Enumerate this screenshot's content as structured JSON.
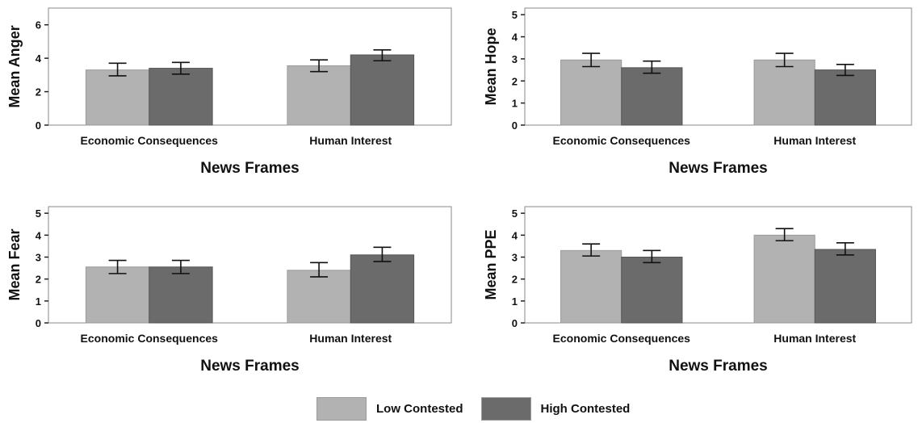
{
  "chart_data": [
    {
      "type": "bar",
      "ylabel": "Mean Anger",
      "xlabel": "News Frames",
      "categories": [
        "Economic Consequences",
        "Human Interest"
      ],
      "ylim": [
        0,
        7
      ],
      "yticks": [
        0,
        2,
        4,
        6
      ],
      "series": [
        {
          "name": "Low Contested",
          "values": [
            3.3,
            3.55
          ],
          "error_low": [
            2.95,
            3.2
          ],
          "error_high": [
            3.7,
            3.9
          ]
        },
        {
          "name": "High Contested",
          "values": [
            3.4,
            4.2
          ],
          "error_low": [
            3.05,
            3.85
          ],
          "error_high": [
            3.75,
            4.5
          ]
        }
      ]
    },
    {
      "type": "bar",
      "ylabel": "Mean Hope",
      "xlabel": "News Frames",
      "categories": [
        "Economic Consequences",
        "Human Interest"
      ],
      "ylim": [
        0,
        5.3
      ],
      "yticks": [
        0,
        1,
        2,
        3,
        4,
        5
      ],
      "series": [
        {
          "name": "Low Contested",
          "values": [
            2.95,
            2.95
          ],
          "error_low": [
            2.65,
            2.65
          ],
          "error_high": [
            3.25,
            3.25
          ]
        },
        {
          "name": "High Contested",
          "values": [
            2.6,
            2.5
          ],
          "error_low": [
            2.35,
            2.25
          ],
          "error_high": [
            2.9,
            2.75
          ]
        }
      ]
    },
    {
      "type": "bar",
      "ylabel": "Mean Fear",
      "xlabel": "News Frames",
      "categories": [
        "Economic Consequences",
        "Human Interest"
      ],
      "ylim": [
        0,
        5.3
      ],
      "yticks": [
        0,
        1,
        2,
        3,
        4,
        5
      ],
      "series": [
        {
          "name": "Low Contested",
          "values": [
            2.55,
            2.4
          ],
          "error_low": [
            2.25,
            2.1
          ],
          "error_high": [
            2.85,
            2.75
          ]
        },
        {
          "name": "High Contested",
          "values": [
            2.55,
            3.1
          ],
          "error_low": [
            2.25,
            2.8
          ],
          "error_high": [
            2.85,
            3.45
          ]
        }
      ]
    },
    {
      "type": "bar",
      "ylabel": "Mean PPE",
      "xlabel": "News Frames",
      "categories": [
        "Economic Consequences",
        "Human Interest"
      ],
      "ylim": [
        0,
        5.3
      ],
      "yticks": [
        0,
        1,
        2,
        3,
        4,
        5
      ],
      "series": [
        {
          "name": "Low Contested",
          "values": [
            3.3,
            4.0
          ],
          "error_low": [
            3.05,
            3.75
          ],
          "error_high": [
            3.6,
            4.3
          ]
        },
        {
          "name": "High Contested",
          "values": [
            3.0,
            3.35
          ],
          "error_low": [
            2.75,
            3.1
          ],
          "error_high": [
            3.3,
            3.65
          ]
        }
      ]
    }
  ],
  "legend": {
    "position": "bottom-center",
    "items": [
      {
        "label": "Low Contested",
        "color": "#b2b2b2"
      },
      {
        "label": "High Contested",
        "color": "#6b6b6b"
      }
    ]
  }
}
